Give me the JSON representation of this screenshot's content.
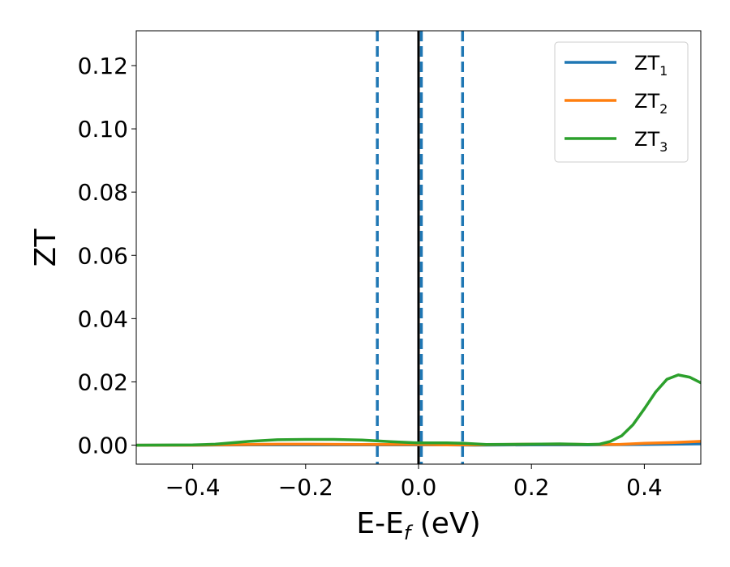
{
  "chart_data": {
    "type": "line",
    "xlabel": {
      "main": "E-E",
      "sub": "f",
      "tail": " (eV)"
    },
    "ylabel": "ZT",
    "xlim": [
      -0.5,
      0.5
    ],
    "ylim": [
      -0.006,
      0.131
    ],
    "xticks": [
      -0.4,
      -0.2,
      0.0,
      0.2,
      0.4
    ],
    "xtick_labels": [
      "−0.4",
      "−0.2",
      "0.0",
      "0.2",
      "0.4"
    ],
    "yticks": [
      0.0,
      0.02,
      0.04,
      0.06,
      0.08,
      0.1,
      0.12
    ],
    "ytick_labels": [
      "0.00",
      "0.02",
      "0.04",
      "0.06",
      "0.08",
      "0.10",
      "0.12"
    ],
    "grid": false,
    "legend_position": "top-right",
    "series": [
      {
        "name": "ZT",
        "name_sub": "1",
        "color": "#1f77b4",
        "x": [
          -0.5,
          -0.4,
          -0.3,
          -0.2,
          -0.1,
          0.0,
          0.05,
          0.1,
          0.2,
          0.3,
          0.4,
          0.45,
          0.5
        ],
        "y": [
          0.0,
          0.0,
          0.0001,
          0.0001,
          0.0001,
          0.0001,
          0.0001,
          0.0,
          0.0001,
          0.0001,
          0.0002,
          0.0003,
          0.0004
        ]
      },
      {
        "name": "ZT",
        "name_sub": "2",
        "color": "#ff7f0e",
        "x": [
          -0.5,
          -0.4,
          -0.3,
          -0.25,
          -0.2,
          -0.1,
          0.0,
          0.05,
          0.1,
          0.15,
          0.2,
          0.25,
          0.3,
          0.35,
          0.4,
          0.45,
          0.5
        ],
        "y": [
          0.0,
          0.0,
          0.0002,
          0.0003,
          0.0003,
          0.0002,
          0.0002,
          0.0001,
          0.0001,
          0.0002,
          0.0003,
          0.0003,
          0.0002,
          0.0002,
          0.0006,
          0.0008,
          0.0012
        ]
      },
      {
        "name": "ZT",
        "name_sub": "3",
        "color": "#2ca02c",
        "x": [
          -0.5,
          -0.4,
          -0.36,
          -0.3,
          -0.25,
          -0.2,
          -0.15,
          -0.1,
          -0.05,
          0.0,
          0.05,
          0.08,
          0.12,
          0.2,
          0.25,
          0.3,
          0.32,
          0.34,
          0.36,
          0.38,
          0.4,
          0.42,
          0.44,
          0.46,
          0.48,
          0.5
        ],
        "y": [
          0.0,
          0.0001,
          0.0003,
          0.0012,
          0.0017,
          0.0018,
          0.0018,
          0.0016,
          0.0011,
          0.0007,
          0.0007,
          0.0006,
          0.0002,
          0.0003,
          0.0004,
          0.0002,
          0.0003,
          0.0012,
          0.003,
          0.0065,
          0.0115,
          0.0168,
          0.0208,
          0.0222,
          0.0215,
          0.0197
        ]
      }
    ],
    "vlines": [
      {
        "x": -0.073,
        "style": "dashed",
        "color": "#1f77b4"
      },
      {
        "x": 0.0,
        "style": "solid",
        "color": "#000000"
      },
      {
        "x": 0.005,
        "style": "dashed",
        "color": "#1f77b4"
      },
      {
        "x": 0.078,
        "style": "dashed",
        "color": "#1f77b4"
      }
    ]
  }
}
